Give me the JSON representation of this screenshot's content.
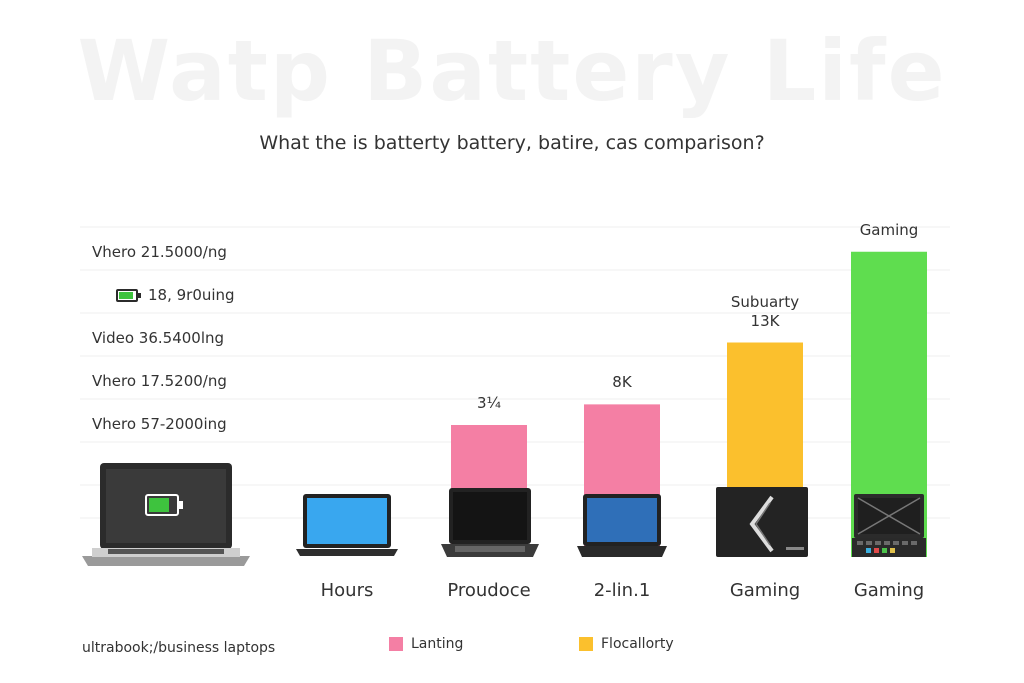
{
  "watermark": "Watp Battery Life",
  "subtitle": "What the is batterty battery, batire, cas comparison?",
  "row_labels": [
    "Vhero 21.5000/ng",
    "18, 9r0uing",
    "Video 36.5400lng",
    "Vhero 17.5200/ng",
    "Vhero 57-2000ing"
  ],
  "footer_note": "ultrabook;/business laptops",
  "legend": [
    {
      "label": "Lanting",
      "color": "#f47fa4"
    },
    {
      "label": "Flocallorty",
      "color": "#fbc02d"
    }
  ],
  "icons": [
    "battery-icon",
    "laptop-icon",
    "gaming-laptop-icon"
  ],
  "chart_data": {
    "type": "bar",
    "title": "",
    "subtitle": "What the is batterty battery, batire, cas comparison?",
    "categories": [
      "Hours",
      "Proudoce",
      "2-lin.1",
      "Gaming",
      "Gaming"
    ],
    "values": [
      null,
      32,
      37,
      52,
      74
    ],
    "bar_colors": [
      null,
      "#f47fa4",
      "#f47fa4",
      "#fbc02d",
      "#5fdd4f"
    ],
    "bar_top_labels": [
      "",
      "3¼",
      "8K",
      "Subuarty\n13K",
      "Gaming"
    ],
    "ylim": [
      0,
      80
    ],
    "grid": true
  }
}
